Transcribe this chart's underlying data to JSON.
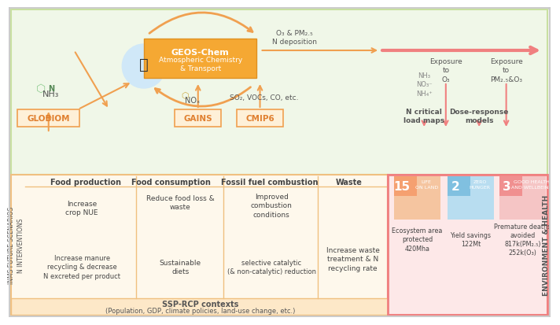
{
  "bg_color": "#ffffff",
  "top_panel_bg": "#f0f7e8",
  "bottom_left_bg": "#fef8ec",
  "bottom_right_bg": "#fde8e8",
  "orange_box_bg": "#f5a623",
  "orange_box_text": "#ffffff",
  "border_color": "#e8a87c",
  "pink_border": "#f08080",
  "title_color": "#333333",
  "text_color": "#333333",
  "arrow_color": "#f0a060",
  "pink_arrow_color": "#f08080",
  "top_section_labels": {
    "geos_chem_title": "GEOS-Chem",
    "geos_chem_sub": "Atmospheric Chemistry\n& Transport",
    "o3_pm": "O₃ & PM₂.₅\nN deposition",
    "globiom": "GLOBIOM",
    "nh3_label": "NH₃",
    "nox_label": "NOₓ",
    "so2_label": "SO₂, VOCs, CO, etc.",
    "gains": "GAINS",
    "cmip6": "CMIP6",
    "nh3_no3": "NH₃\nNO₃⁻\nNH₄⁺",
    "n_critical": "N critical\nload maps",
    "exposure_o3": "Exposure\nto\nO₃",
    "dose_response": "Dose-response\nmodels",
    "exposure_pm": "Exposure\nto\nPM₂.₅&O₃"
  },
  "bottom_section": {
    "left_label": "INMS FUTURE SCENARIOS\nN INTERVENTIONS",
    "col_headers": [
      "Food production",
      "Food consumption",
      "Fossil fuel combustion",
      "Waste"
    ],
    "food_prod_items": [
      "Increase\ncrop NUE",
      "Increase manure\nrecycling & decrease\nN excreted per product"
    ],
    "food_cons_items": [
      "Reduce food loss &\nwaste",
      "Sustainable\ndiets"
    ],
    "fossil_items": [
      "Improved\ncombustion\nconditions",
      "selective catalytic\n(& non-catalytic) reduction"
    ],
    "waste_items": [
      "Increase waste\ntreatment & N\nrecycling rate"
    ],
    "ssp_text": "SSP-RCP contexts",
    "ssp_sub": "(Population, GDP, climate policies, land-use change, etc.)"
  },
  "right_section": {
    "header": "ENVIRONMENT & HEALTH",
    "boxes": [
      {
        "num": "15",
        "sub": "LIFE\nON LAND",
        "desc": "Ecosystem area\nprotected\n420Mha",
        "bg": "#f5c5a0",
        "num_bg": "#f5a070"
      },
      {
        "num": "2",
        "sub": "ZERO\nHUNGER",
        "desc": "Yield savings\n122Mt",
        "bg": "#b8ddf0",
        "num_bg": "#80c0e0"
      },
      {
        "num": "3",
        "sub": "GOOD HEALTH\nAND WELLBEING",
        "desc": "Premature deaths\navoided\n817k(PM₂.₅)\n252k(O₃)",
        "bg": "#f5c5c5",
        "num_bg": "#f09090"
      }
    ]
  }
}
